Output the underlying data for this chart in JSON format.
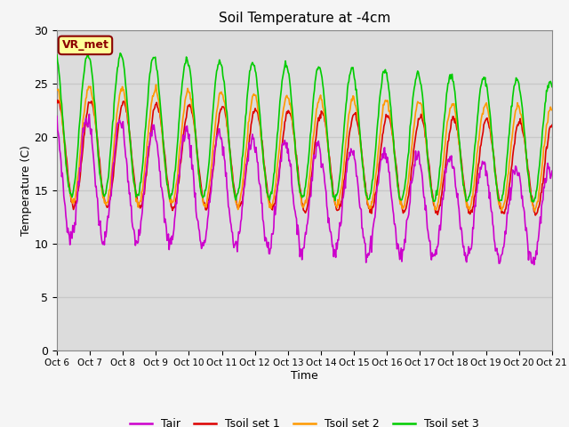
{
  "title": "Soil Temperature at -4cm",
  "xlabel": "Time",
  "ylabel": "Temperature (C)",
  "ylim": [
    0,
    30
  ],
  "annotation": "VR_met",
  "line_colors": {
    "Tair": "#cc00cc",
    "Tsoil set 1": "#dd0000",
    "Tsoil set 2": "#ff9900",
    "Tsoil set 3": "#00cc00"
  },
  "x_tick_labels": [
    "Oct 6",
    "Oct 7",
    "Oct 8",
    "Oct 9",
    "Oct 10",
    "Oct 11",
    "Oct 12",
    "Oct 13",
    "Oct 14",
    "Oct 15",
    "Oct 16",
    "Oct 17",
    "Oct 18",
    "Oct 19",
    "Oct 20",
    "Oct 21"
  ],
  "grid_color": "#d0d0d0",
  "plot_bg_color": "#dcdcdc",
  "fig_bg_color": "#f5f5f5",
  "yticks": [
    0,
    5,
    10,
    15,
    20,
    25,
    30
  ]
}
